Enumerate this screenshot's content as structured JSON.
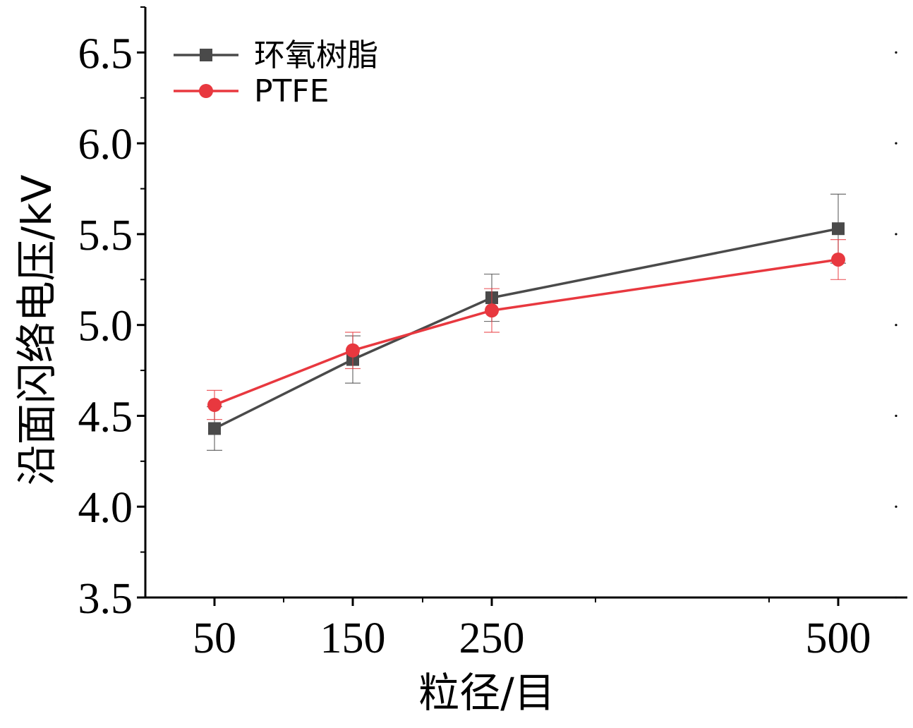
{
  "chart_data": {
    "type": "line",
    "xlabel": "粒径/目",
    "ylabel": "沿面闪络电压/kV",
    "x_categories": [
      "50",
      "150",
      "250",
      "500"
    ],
    "x_values": [
      50,
      150,
      250,
      500
    ],
    "ylim": [
      3.5,
      6.75
    ],
    "y_ticks": [
      "3.5",
      "4.0",
      "4.5",
      "5.0",
      "5.5",
      "6.0",
      "6.5"
    ],
    "legend_position": "top-left",
    "grid": false,
    "series": [
      {
        "name": "环氧树脂",
        "color": "#4a4a4a",
        "marker": "square",
        "values": [
          4.43,
          4.81,
          5.15,
          5.53
        ],
        "error": [
          0.12,
          0.13,
          0.13,
          0.19
        ]
      },
      {
        "name": "PTFE",
        "color": "#e8383f",
        "marker": "circle",
        "values": [
          4.56,
          4.86,
          5.08,
          5.36
        ],
        "error": [
          0.08,
          0.1,
          0.12,
          0.11
        ]
      }
    ]
  }
}
